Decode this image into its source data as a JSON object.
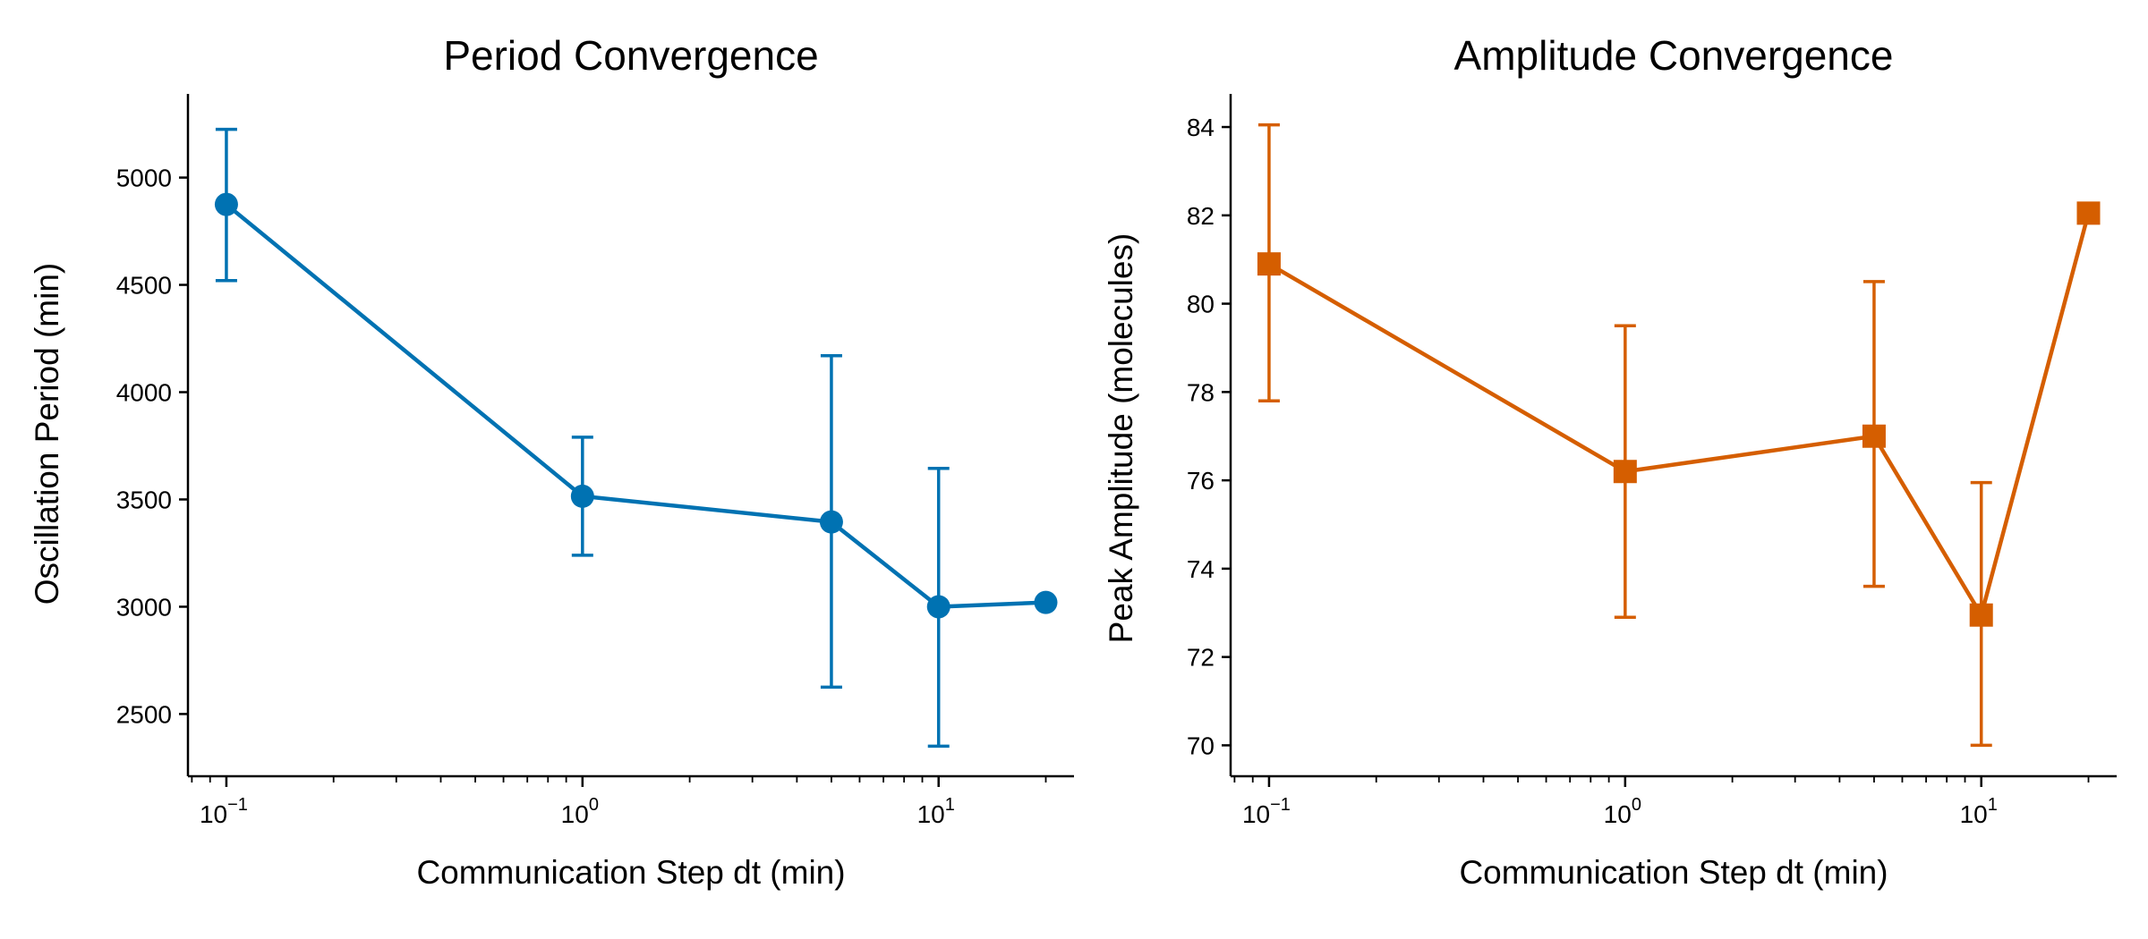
{
  "chart_data": [
    {
      "type": "line",
      "title": "Period Convergence",
      "xlabel": "Communication Step dt (min)",
      "ylabel": "Oscillation Period (min)",
      "xscale": "log",
      "xlim": [
        0.078,
        24
      ],
      "ylim": [
        2210,
        5390
      ],
      "yticks": [
        2500,
        3000,
        3500,
        4000,
        4500,
        5000
      ],
      "xticks": [
        {
          "value": 0.1,
          "base": "10",
          "exp": "−1"
        },
        {
          "value": 1,
          "base": "10",
          "exp": "0"
        },
        {
          "value": 10,
          "base": "10",
          "exp": "1"
        }
      ],
      "color": "#0072b2",
      "marker": "circle",
      "series": [
        {
          "name": "Period",
          "x": [
            0.1,
            1,
            5,
            10,
            20
          ],
          "y": [
            4875,
            3515,
            3395,
            3000,
            3020
          ],
          "err_low": [
            4520,
            3240,
            2625,
            2350,
            null
          ],
          "err_high": [
            5225,
            3790,
            4170,
            3645,
            null
          ]
        }
      ]
    },
    {
      "type": "line",
      "title": "Amplitude Convergence",
      "xlabel": "Communication Step dt (min)",
      "ylabel": "Peak Amplitude (molecules)",
      "xscale": "log",
      "xlim": [
        0.078,
        24
      ],
      "ylim": [
        69.3,
        84.75
      ],
      "yticks": [
        70,
        72,
        74,
        76,
        78,
        80,
        82,
        84
      ],
      "xticks": [
        {
          "value": 0.1,
          "base": "10",
          "exp": "−1"
        },
        {
          "value": 1,
          "base": "10",
          "exp": "0"
        },
        {
          "value": 10,
          "base": "10",
          "exp": "1"
        }
      ],
      "color": "#d55e00",
      "marker": "square",
      "series": [
        {
          "name": "Amplitude",
          "x": [
            0.1,
            1,
            5,
            10,
            20
          ],
          "y": [
            80.9,
            76.2,
            77.0,
            72.95,
            82.05
          ],
          "err_low": [
            77.8,
            72.9,
            73.6,
            70.0,
            null
          ],
          "err_high": [
            84.05,
            79.5,
            80.5,
            75.95,
            null
          ]
        }
      ]
    }
  ]
}
